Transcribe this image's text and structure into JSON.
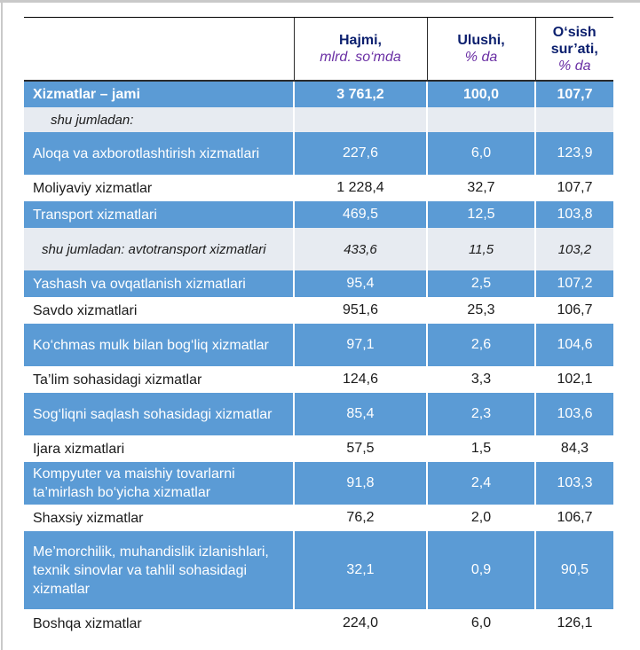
{
  "table": {
    "headers": {
      "col2_title": "Hajmi,",
      "col2_sub": "mlrd. so‘mda",
      "col3_title": "Ulushi,",
      "col3_sub": "% da",
      "col4_title_1": "O‘sish",
      "col4_title_2": "sur’ati,",
      "col4_sub": "% da"
    },
    "rows": [
      {
        "label": "Xizmatlar – jami",
        "hajmi": "3 761,2",
        "ulushi": "100,0",
        "osish": "107,7",
        "style": "total"
      },
      {
        "label": "shu jumladan:",
        "hajmi": "",
        "ulushi": "",
        "osish": "",
        "style": "sub"
      },
      {
        "label": "Aloqa va axborotlashtirish xizmatlari",
        "hajmi": "227,6",
        "ulushi": "6,0",
        "osish": "123,9",
        "style": "blue"
      },
      {
        "label": "Moliyaviy xizmatlar",
        "hajmi": "1 228,4",
        "ulushi": "32,7",
        "osish": "107,7",
        "style": "white"
      },
      {
        "label": "Transport xizmatlari",
        "hajmi": "469,5",
        "ulushi": "12,5",
        "osish": "103,8",
        "style": "blue"
      },
      {
        "label": "shu jumladan: avtotransport xizmatlari",
        "hajmi": "433,6",
        "ulushi": "11,5",
        "osish": "103,2",
        "style": "italic"
      },
      {
        "label": "Yashash va ovqatlanish xizmatlari",
        "hajmi": "95,4",
        "ulushi": "2,5",
        "osish": "107,2",
        "style": "blue"
      },
      {
        "label": "Savdo xizmatlari",
        "hajmi": "951,6",
        "ulushi": "25,3",
        "osish": "106,7",
        "style": "white"
      },
      {
        "label": "Ko‘chmas mulk bilan bog‘liq xizmatlar",
        "hajmi": "97,1",
        "ulushi": "2,6",
        "osish": "104,6",
        "style": "blue"
      },
      {
        "label": "Ta’lim sohasidagi xizmatlar",
        "hajmi": "124,6",
        "ulushi": "3,3",
        "osish": "102,1",
        "style": "white"
      },
      {
        "label": "Sog‘liqni saqlash sohasidagi xizmatlar",
        "hajmi": "85,4",
        "ulushi": "2,3",
        "osish": "103,6",
        "style": "blue"
      },
      {
        "label": "Ijara xizmatlari",
        "hajmi": "57,5",
        "ulushi": "1,5",
        "osish": "84,3",
        "style": "white"
      },
      {
        "label": "Kompyuter va maishiy tovarlarni ta’mirlash bo‘yicha xizmatlar",
        "hajmi": "91,8",
        "ulushi": "2,4",
        "osish": "103,3",
        "style": "blue"
      },
      {
        "label": "Shaxsiy xizmatlar",
        "hajmi": "76,2",
        "ulushi": "2,0",
        "osish": "106,7",
        "style": "white"
      },
      {
        "label": "Me’morchilik, muhandislik izlanishlari, texnik sinovlar va tahlil sohasidagi xizmatlar",
        "hajmi": "32,1",
        "ulushi": "0,9",
        "osish": "90,5",
        "style": "blue"
      },
      {
        "label": "Boshqa xizmatlar",
        "hajmi": "224,0",
        "ulushi": "6,0",
        "osish": "126,1",
        "style": "white"
      }
    ]
  }
}
